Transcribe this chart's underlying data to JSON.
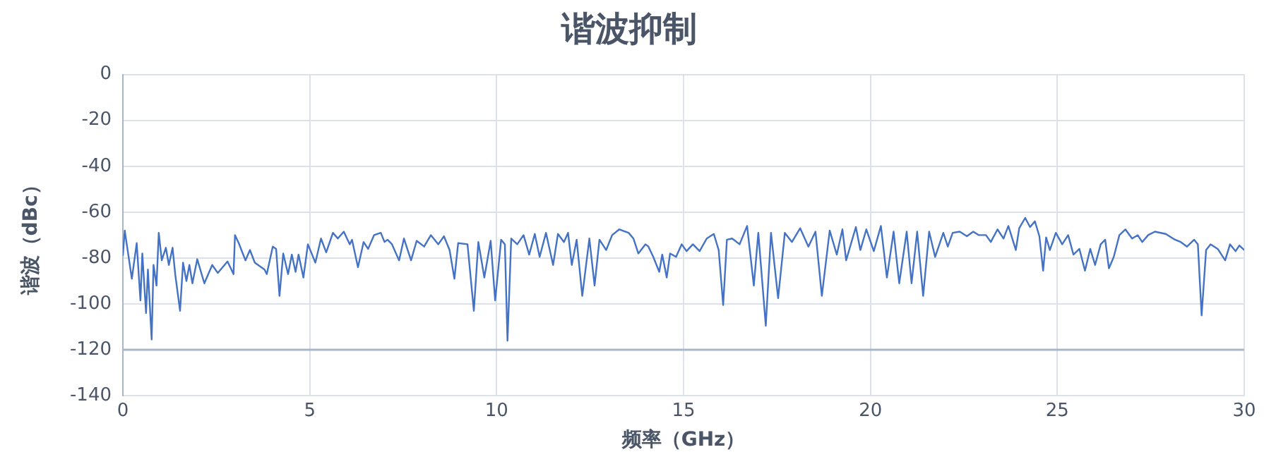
{
  "chart_data": {
    "type": "line",
    "title": "谐波抑制",
    "xlabel": "频率（GHz）",
    "ylabel": "谐波（dBc）",
    "xlim": [
      0,
      30
    ],
    "xticks": [
      0,
      5,
      10,
      15,
      20,
      25,
      30
    ],
    "ylim": [
      -140,
      0
    ],
    "yticks": [
      0,
      -20,
      -40,
      -60,
      -80,
      -100,
      -120,
      -140
    ],
    "grid": true,
    "legend": false,
    "marker": "none",
    "line_style": "solid",
    "ref_lines": [
      {
        "axis": "y",
        "value": -120,
        "color": "#a9b5c9"
      }
    ],
    "series": [
      {
        "color": "#4472c4",
        "x": [
          0,
          0.05,
          0.24,
          0.37,
          0.47,
          0.52,
          0.62,
          0.67,
          0.77,
          0.82,
          0.9,
          0.96,
          1.04,
          1.15,
          1.23,
          1.33,
          1.4,
          1.53,
          1.61,
          1.7,
          1.78,
          1.86,
          1.99,
          2.18,
          2.39,
          2.54,
          2.8,
          2.96,
          3.0,
          3.1,
          3.28,
          3.4,
          3.53,
          3.79,
          3.85,
          4.01,
          4.1,
          4.19,
          4.29,
          4.42,
          4.52,
          4.62,
          4.7,
          4.83,
          4.95,
          5.15,
          5.3,
          5.44,
          5.62,
          5.75,
          5.91,
          6.07,
          6.13,
          6.29,
          6.44,
          6.56,
          6.72,
          6.9,
          7.0,
          7.08,
          7.2,
          7.39,
          7.52,
          7.71,
          7.86,
          8.06,
          8.24,
          8.44,
          8.59,
          8.74,
          8.87,
          8.97,
          9.22,
          9.39,
          9.51,
          9.67,
          9.84,
          9.96,
          10.12,
          10.22,
          10.29,
          10.39,
          10.55,
          10.72,
          10.87,
          11.02,
          11.15,
          11.32,
          11.51,
          11.64,
          11.8,
          11.91,
          12.01,
          12.14,
          12.29,
          12.48,
          12.62,
          12.75,
          12.93,
          13.09,
          13.28,
          13.53,
          13.66,
          13.79,
          13.98,
          14.06,
          14.19,
          14.35,
          14.43,
          14.55,
          14.64,
          14.8,
          14.95,
          15.08,
          15.25,
          15.43,
          15.62,
          15.81,
          15.94,
          16.06,
          16.16,
          16.3,
          16.5,
          16.7,
          16.88,
          17.0,
          17.2,
          17.34,
          17.53,
          17.71,
          17.9,
          18.12,
          18.34,
          18.53,
          18.7,
          18.91,
          19.1,
          19.25,
          19.35,
          19.61,
          19.73,
          19.89,
          20.09,
          20.28,
          20.44,
          20.62,
          20.77,
          20.97,
          21.1,
          21.25,
          21.41,
          21.57,
          21.73,
          21.95,
          22.07,
          22.2,
          22.39,
          22.58,
          22.75,
          22.9,
          23.09,
          23.22,
          23.4,
          23.56,
          23.69,
          23.89,
          23.98,
          24.14,
          24.27,
          24.4,
          24.52,
          24.62,
          24.7,
          24.8,
          24.96,
          25.13,
          25.29,
          25.43,
          25.59,
          25.74,
          25.88,
          26.01,
          26.16,
          26.28,
          26.38,
          26.51,
          26.66,
          26.82,
          27.0,
          27.15,
          27.27,
          27.43,
          27.61,
          27.9,
          28.15,
          28.3,
          28.47,
          28.66,
          28.76,
          28.86,
          28.98,
          29.1,
          29.29,
          29.49,
          29.62,
          29.77,
          29.87,
          30.0
        ],
        "values": [
          -79,
          -68,
          -89,
          -73.5,
          -98.5,
          -78,
          -104,
          -85,
          -115.5,
          -83,
          -92,
          -69,
          -81,
          -75.5,
          -83,
          -75.5,
          -87,
          -103,
          -82,
          -90,
          -83,
          -91,
          -80.5,
          -91,
          -83,
          -86.5,
          -81.5,
          -87,
          -70,
          -73.5,
          -81,
          -76.5,
          -82,
          -85,
          -87,
          -75,
          -76,
          -96.5,
          -78,
          -87,
          -78.5,
          -86,
          -78.5,
          -88.5,
          -74,
          -82,
          -71.5,
          -77.5,
          -69,
          -71.5,
          -68.5,
          -74,
          -72,
          -84,
          -73,
          -76,
          -70,
          -69,
          -73,
          -72,
          -74,
          -81,
          -71.5,
          -81,
          -72.5,
          -75,
          -70,
          -74,
          -70.5,
          -76.5,
          -89,
          -73.5,
          -74,
          -103,
          -73,
          -88.5,
          -72.5,
          -98.5,
          -72,
          -74,
          -116,
          -71.5,
          -74,
          -70,
          -78.5,
          -69.5,
          -79.5,
          -69,
          -83,
          -69.5,
          -73,
          -69,
          -83,
          -72,
          -96.5,
          -71.5,
          -92,
          -72,
          -76.5,
          -70,
          -67.5,
          -69,
          -71.5,
          -78,
          -74,
          -75,
          -79.5,
          -86,
          -78.5,
          -88.5,
          -78,
          -79.5,
          -74,
          -77,
          -74,
          -77,
          -71.5,
          -69.5,
          -76.5,
          -100.5,
          -72,
          -71.5,
          -74,
          -66,
          -92,
          -69,
          -109.5,
          -69,
          -97.5,
          -69,
          -73,
          -67,
          -75,
          -68.5,
          -96.5,
          -68,
          -78.5,
          -67.5,
          -81,
          -66.5,
          -76.5,
          -67.5,
          -77,
          -66,
          -88.5,
          -68.5,
          -91,
          -68.5,
          -91,
          -68.5,
          -96.5,
          -68.5,
          -79.5,
          -69,
          -75,
          -69,
          -68.5,
          -70.5,
          -68.5,
          -70,
          -70,
          -73,
          -67.5,
          -71.5,
          -66,
          -76.5,
          -67,
          -62.5,
          -66.5,
          -64,
          -70.5,
          -85.5,
          -71,
          -76.5,
          -69,
          -74,
          -70,
          -78.5,
          -76,
          -85.5,
          -76,
          -83,
          -74,
          -72,
          -84.5,
          -79.5,
          -70,
          -67.5,
          -71.5,
          -70,
          -73,
          -70,
          -68.5,
          -69.5,
          -72,
          -73,
          -75,
          -72,
          -74,
          -105,
          -76.5,
          -74,
          -76,
          -81,
          -74,
          -77,
          -74.5,
          -76.5
        ]
      }
    ]
  }
}
